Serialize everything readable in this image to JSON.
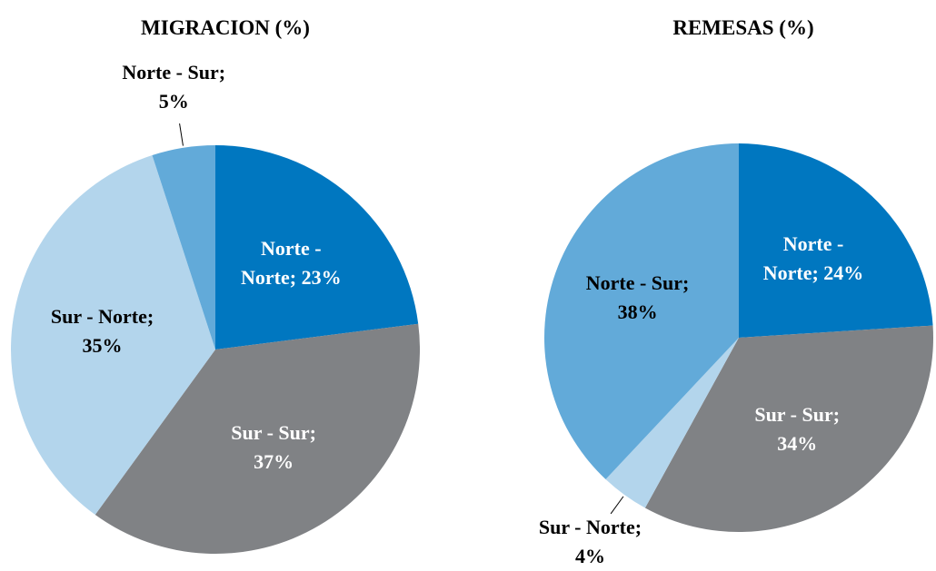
{
  "chart_data": [
    {
      "type": "pie",
      "title": "MIGRACION (%)",
      "categories": [
        "Norte - Norte",
        "Sur - Sur",
        "Sur - Norte",
        "Norte - Sur"
      ],
      "values": [
        23,
        37,
        35,
        5
      ],
      "value_labels": [
        "Norte - Norte; 23%",
        "Sur - Sur; 37%",
        "Sur - Norte; 35%",
        "Norte - Sur; 5%"
      ],
      "colors": [
        "#0077c0",
        "#808285",
        "#b3d5ec",
        "#62aad9"
      ]
    },
    {
      "type": "pie",
      "title": "REMESAS (%)",
      "categories": [
        "Norte - Norte",
        "Sur - Sur",
        "Sur - Norte",
        "Norte - Sur"
      ],
      "values": [
        24,
        34,
        4,
        38
      ],
      "value_labels": [
        "Norte - Norte; 24%",
        "Sur - Sur; 34%",
        "Sur - Norte; 4%",
        "Norte - Sur; 38%"
      ],
      "colors": [
        "#0077c0",
        "#808285",
        "#b3d5ec",
        "#62aad9"
      ]
    }
  ]
}
